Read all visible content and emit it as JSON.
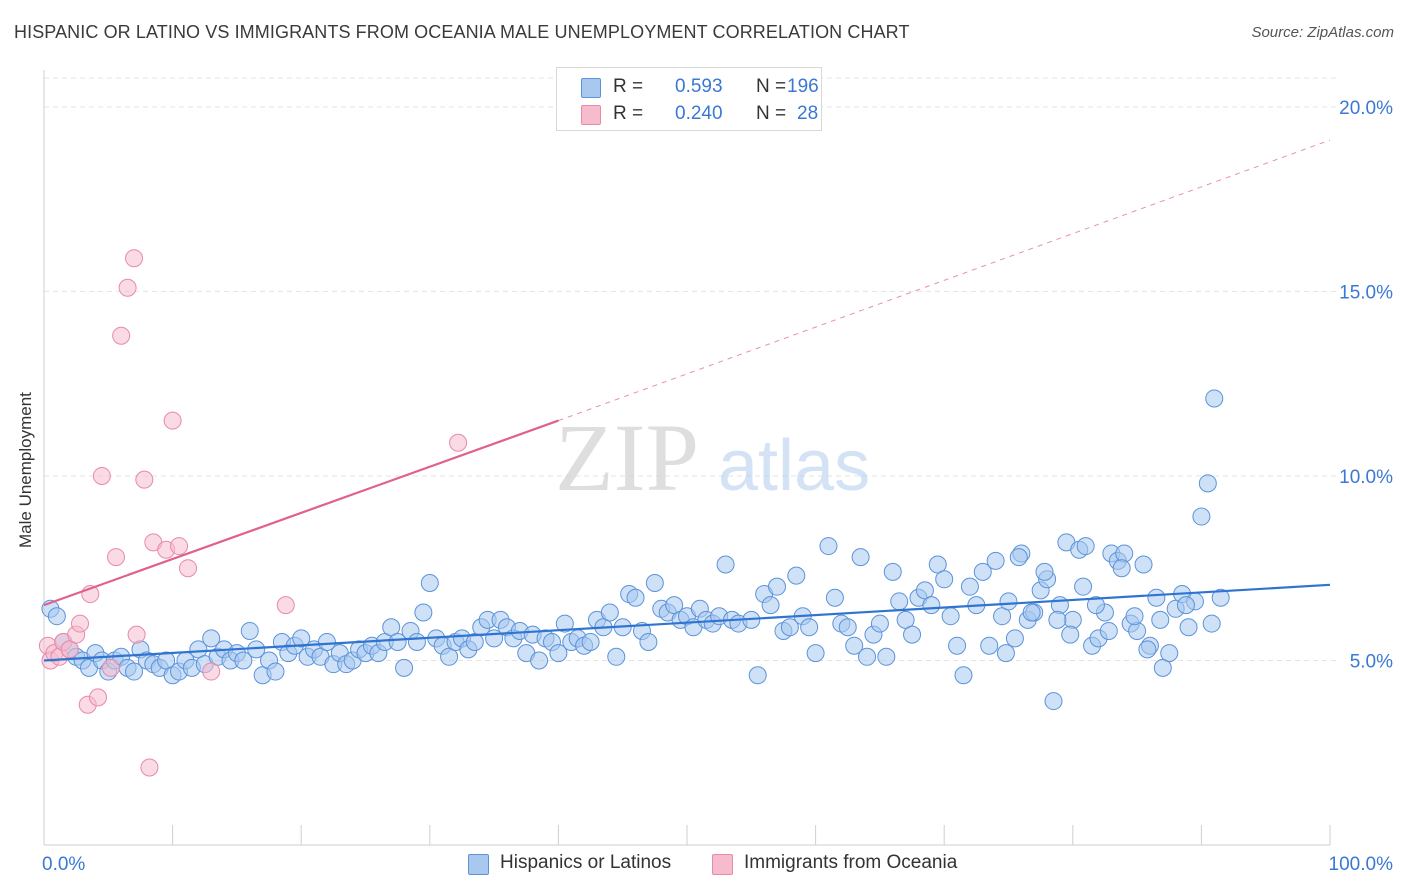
{
  "title": "HISPANIC OR LATINO VS IMMIGRANTS FROM OCEANIA MALE UNEMPLOYMENT CORRELATION CHART",
  "source": "Source: ZipAtlas.com",
  "watermark": {
    "zip": "ZIP",
    "atlas": "atlas"
  },
  "legend": {
    "r_label": "R =",
    "n_label": "N =",
    "series": [
      {
        "r": "0.593",
        "n": "196"
      },
      {
        "r": "0.240",
        "n": "28"
      }
    ]
  },
  "bottom_legend": [
    "Hispanics or Latinos",
    "Immigrants from Oceania"
  ],
  "colors": {
    "blue_fill": "#a8c8f0",
    "blue_stroke": "#5b93d9",
    "blue_line": "#2f74d0",
    "pink_fill": "#f6bccd",
    "pink_stroke": "#e88aa8",
    "pink_line": "#e0608e",
    "tick_text": "#3a78d4",
    "grid": "#e3e3e3"
  },
  "chart_data": {
    "type": "scatter",
    "xlabel": "",
    "ylabel": "Male Unemployment",
    "xlim": [
      0,
      100
    ],
    "ylim": [
      0,
      21
    ],
    "x_ticks": [
      {
        "value": 0,
        "label": "0.0%"
      },
      {
        "value": 100,
        "label": "100.0%"
      }
    ],
    "y_ticks": [
      {
        "value": 5,
        "label": "5.0%"
      },
      {
        "value": 10,
        "label": "10.0%"
      },
      {
        "value": 15,
        "label": "15.0%"
      },
      {
        "value": 20,
        "label": "20.0%"
      }
    ],
    "grid": "horizontal dashed",
    "series": [
      {
        "name": "Hispanics or Latinos",
        "r": 0.593,
        "n": 196,
        "trendline": {
          "x": [
            0,
            100
          ],
          "y": [
            5.0,
            7.05
          ]
        },
        "points": [
          [
            0.5,
            6.4
          ],
          [
            1.0,
            6.2
          ],
          [
            1.5,
            5.5
          ],
          [
            2,
            5.3
          ],
          [
            2.5,
            5.1
          ],
          [
            3,
            5.0
          ],
          [
            3.5,
            4.8
          ],
          [
            4,
            5.2
          ],
          [
            4.5,
            5.0
          ],
          [
            5,
            4.7
          ],
          [
            5.5,
            5.0
          ],
          [
            6,
            5.1
          ],
          [
            6.5,
            4.8
          ],
          [
            7,
            4.7
          ],
          [
            7.5,
            5.3
          ],
          [
            8,
            5.0
          ],
          [
            8.5,
            4.9
          ],
          [
            9,
            4.8
          ],
          [
            9.5,
            5.0
          ],
          [
            10,
            4.6
          ],
          [
            10.5,
            4.7
          ],
          [
            11,
            5.0
          ],
          [
            11.5,
            4.8
          ],
          [
            12,
            5.3
          ],
          [
            12.5,
            4.9
          ],
          [
            13,
            5.6
          ],
          [
            13.5,
            5.1
          ],
          [
            14,
            5.3
          ],
          [
            14.5,
            5.0
          ],
          [
            15,
            5.2
          ],
          [
            15.5,
            5.0
          ],
          [
            16,
            5.8
          ],
          [
            16.5,
            5.3
          ],
          [
            17,
            4.6
          ],
          [
            17.5,
            5.0
          ],
          [
            18,
            4.7
          ],
          [
            18.5,
            5.5
          ],
          [
            19,
            5.2
          ],
          [
            19.5,
            5.4
          ],
          [
            20,
            5.6
          ],
          [
            20.5,
            5.1
          ],
          [
            21,
            5.3
          ],
          [
            21.5,
            5.1
          ],
          [
            22,
            5.5
          ],
          [
            22.5,
            4.9
          ],
          [
            23,
            5.2
          ],
          [
            23.5,
            4.9
          ],
          [
            24,
            5.0
          ],
          [
            24.5,
            5.3
          ],
          [
            25,
            5.2
          ],
          [
            25.5,
            5.4
          ],
          [
            26,
            5.2
          ],
          [
            26.5,
            5.5
          ],
          [
            27,
            5.9
          ],
          [
            27.5,
            5.5
          ],
          [
            28,
            4.8
          ],
          [
            28.5,
            5.8
          ],
          [
            29,
            5.5
          ],
          [
            29.5,
            6.3
          ],
          [
            30,
            7.1
          ],
          [
            30.5,
            5.6
          ],
          [
            31,
            5.4
          ],
          [
            31.5,
            5.1
          ],
          [
            32,
            5.5
          ],
          [
            32.5,
            5.6
          ],
          [
            33,
            5.3
          ],
          [
            33.5,
            5.5
          ],
          [
            34,
            5.9
          ],
          [
            34.5,
            6.1
          ],
          [
            35,
            5.6
          ],
          [
            35.5,
            6.1
          ],
          [
            36,
            5.9
          ],
          [
            36.5,
            5.6
          ],
          [
            37,
            5.8
          ],
          [
            37.5,
            5.2
          ],
          [
            38,
            5.7
          ],
          [
            38.5,
            5.0
          ],
          [
            39,
            5.6
          ],
          [
            39.5,
            5.5
          ],
          [
            40,
            5.2
          ],
          [
            40.5,
            6.0
          ],
          [
            41,
            5.5
          ],
          [
            41.5,
            5.6
          ],
          [
            42,
            5.4
          ],
          [
            42.5,
            5.5
          ],
          [
            43,
            6.1
          ],
          [
            43.5,
            5.9
          ],
          [
            44,
            6.3
          ],
          [
            44.5,
            5.1
          ],
          [
            45,
            5.9
          ],
          [
            45.5,
            6.8
          ],
          [
            46,
            6.7
          ],
          [
            46.5,
            5.8
          ],
          [
            47,
            5.5
          ],
          [
            47.5,
            7.1
          ],
          [
            48,
            6.4
          ],
          [
            48.5,
            6.3
          ],
          [
            49,
            6.5
          ],
          [
            49.5,
            6.1
          ],
          [
            50,
            6.2
          ],
          [
            50.5,
            5.9
          ],
          [
            51,
            6.4
          ],
          [
            51.5,
            6.1
          ],
          [
            52,
            6.0
          ],
          [
            52.5,
            6.2
          ],
          [
            53,
            7.6
          ],
          [
            53.5,
            6.1
          ],
          [
            54,
            6.0
          ],
          [
            55,
            6.1
          ],
          [
            55.5,
            4.6
          ],
          [
            56,
            6.8
          ],
          [
            56.5,
            6.5
          ],
          [
            57,
            7.0
          ],
          [
            57.5,
            5.8
          ],
          [
            58,
            5.9
          ],
          [
            58.5,
            7.3
          ],
          [
            59,
            6.2
          ],
          [
            59.5,
            5.9
          ],
          [
            60,
            5.2
          ],
          [
            61,
            8.1
          ],
          [
            61.5,
            6.7
          ],
          [
            62,
            6.0
          ],
          [
            62.5,
            5.9
          ],
          [
            63,
            5.4
          ],
          [
            63.5,
            7.8
          ],
          [
            64,
            5.1
          ],
          [
            64.5,
            5.7
          ],
          [
            65,
            6.0
          ],
          [
            65.5,
            5.1
          ],
          [
            66,
            7.4
          ],
          [
            66.5,
            6.6
          ],
          [
            67,
            6.1
          ],
          [
            67.5,
            5.7
          ],
          [
            68,
            6.7
          ],
          [
            68.5,
            6.9
          ],
          [
            69,
            6.5
          ],
          [
            69.5,
            7.6
          ],
          [
            70,
            7.2
          ],
          [
            70.5,
            6.2
          ],
          [
            71,
            5.4
          ],
          [
            71.5,
            4.6
          ],
          [
            72,
            7.0
          ],
          [
            72.5,
            6.5
          ],
          [
            73,
            7.4
          ],
          [
            73.5,
            5.4
          ],
          [
            74,
            7.7
          ],
          [
            74.5,
            6.2
          ],
          [
            75,
            6.6
          ],
          [
            75.5,
            5.6
          ],
          [
            76,
            7.9
          ],
          [
            76.5,
            6.1
          ],
          [
            77,
            6.3
          ],
          [
            77.5,
            6.9
          ],
          [
            78,
            7.2
          ],
          [
            78.5,
            3.9
          ],
          [
            79,
            6.5
          ],
          [
            79.5,
            8.2
          ],
          [
            80,
            6.1
          ],
          [
            80.5,
            8.0
          ],
          [
            81,
            8.1
          ],
          [
            81.5,
            5.4
          ],
          [
            82,
            5.6
          ],
          [
            82.5,
            6.3
          ],
          [
            83,
            7.9
          ],
          [
            83.5,
            7.7
          ],
          [
            84,
            7.9
          ],
          [
            84.5,
            6.0
          ],
          [
            85,
            5.8
          ],
          [
            85.5,
            7.6
          ],
          [
            86,
            5.4
          ],
          [
            86.5,
            6.7
          ],
          [
            87,
            4.8
          ],
          [
            87.5,
            5.2
          ],
          [
            88,
            6.4
          ],
          [
            88.5,
            6.8
          ],
          [
            89,
            5.9
          ],
          [
            89.5,
            6.6
          ],
          [
            90,
            8.9
          ],
          [
            90.5,
            9.8
          ],
          [
            91,
            12.1
          ],
          [
            91.5,
            6.7
          ],
          [
            90.8,
            6.0
          ],
          [
            88.8,
            6.5
          ],
          [
            86.8,
            6.1
          ],
          [
            85.8,
            5.3
          ],
          [
            84.8,
            6.2
          ],
          [
            83.8,
            7.5
          ],
          [
            82.8,
            5.8
          ],
          [
            81.8,
            6.5
          ],
          [
            80.8,
            7.0
          ],
          [
            79.8,
            5.7
          ],
          [
            78.8,
            6.1
          ],
          [
            77.8,
            7.4
          ],
          [
            76.8,
            6.3
          ],
          [
            75.8,
            7.8
          ],
          [
            74.8,
            5.2
          ]
        ]
      },
      {
        "name": "Immigrants from Oceania",
        "r": 0.24,
        "n": 28,
        "trendline": {
          "x": [
            0,
            40
          ],
          "y": [
            6.5,
            11.5
          ],
          "extension": {
            "x": [
              40,
              100
            ],
            "y": [
              11.5,
              19.1
            ]
          }
        },
        "points": [
          [
            0.3,
            5.4
          ],
          [
            0.5,
            5.0
          ],
          [
            0.8,
            5.2
          ],
          [
            1.2,
            5.1
          ],
          [
            1.5,
            5.5
          ],
          [
            2.0,
            5.3
          ],
          [
            2.5,
            5.7
          ],
          [
            2.8,
            6.0
          ],
          [
            3.4,
            3.8
          ],
          [
            3.6,
            6.8
          ],
          [
            4.2,
            4.0
          ],
          [
            4.5,
            10.0
          ],
          [
            5.2,
            4.8
          ],
          [
            5.6,
            7.8
          ],
          [
            6.0,
            13.8
          ],
          [
            6.5,
            15.1
          ],
          [
            7.0,
            15.9
          ],
          [
            7.2,
            5.7
          ],
          [
            7.8,
            9.9
          ],
          [
            8.2,
            2.1
          ],
          [
            8.5,
            8.2
          ],
          [
            9.5,
            8.0
          ],
          [
            10.0,
            11.5
          ],
          [
            10.5,
            8.1
          ],
          [
            11.2,
            7.5
          ],
          [
            13.0,
            4.7
          ],
          [
            18.8,
            6.5
          ],
          [
            32.2,
            10.9
          ]
        ]
      }
    ]
  }
}
